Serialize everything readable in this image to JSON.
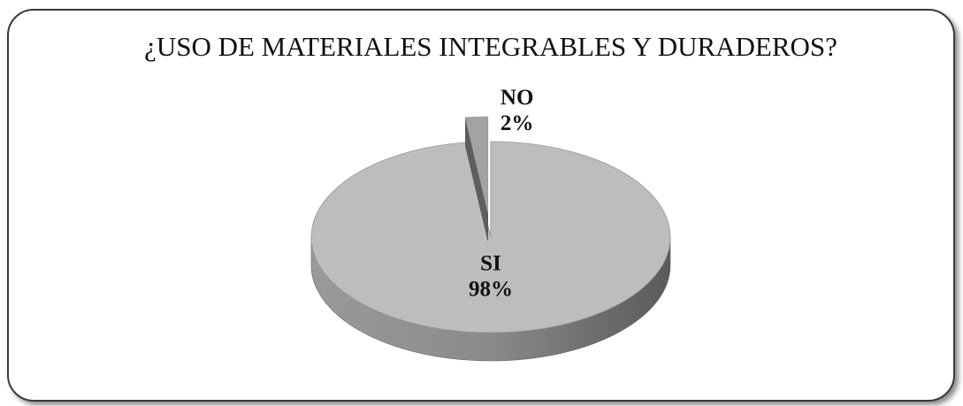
{
  "chart_data": {
    "type": "pie",
    "title": "¿USO DE MATERIALES INTEGRABLES Y DURADEROS?",
    "categories": [
      "SI",
      "NO"
    ],
    "values": [
      98,
      2
    ],
    "value_labels": [
      "98%",
      "2%"
    ],
    "colors": [
      "#bdbdbd",
      "#a3a3a3"
    ]
  }
}
